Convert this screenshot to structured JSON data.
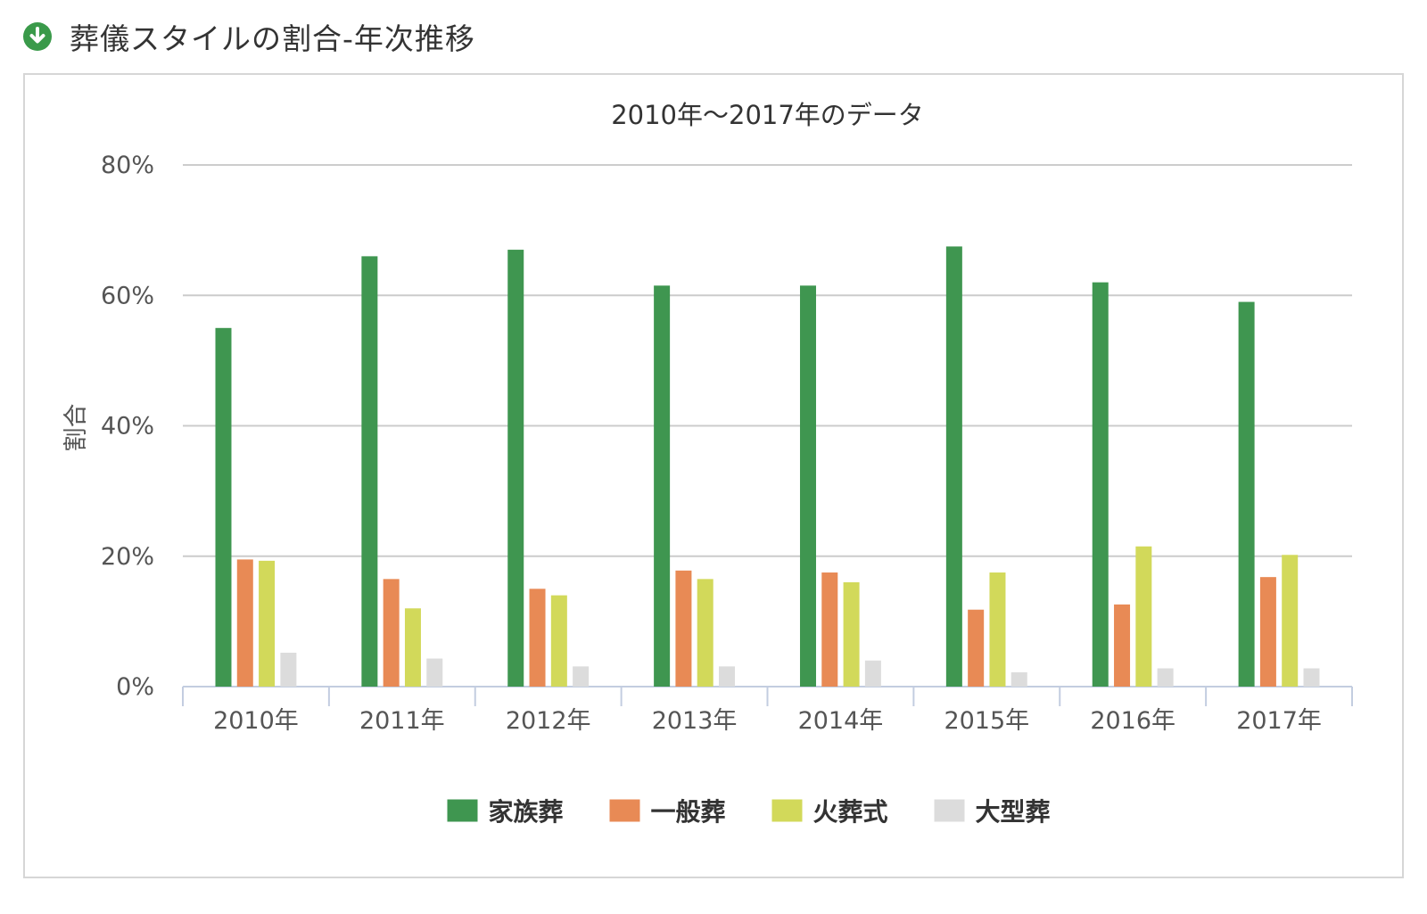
{
  "header": {
    "title": "葬儀スタイルの割合-年次推移",
    "icon": "download-arrow-icon",
    "icon_color": "#3a9a4a"
  },
  "chart_data": {
    "type": "bar",
    "title": "2010年～2017年のデータ",
    "xlabel": "",
    "ylabel": "割合",
    "ylim": [
      0,
      80
    ],
    "yticks": [
      "0%",
      "20%",
      "40%",
      "60%",
      "80%"
    ],
    "grid": true,
    "legend_position": "bottom",
    "categories": [
      "2010年",
      "2011年",
      "2012年",
      "2013年",
      "2014年",
      "2015年",
      "2016年",
      "2017年"
    ],
    "series": [
      {
        "name": "家族葬",
        "color": "#3f9650",
        "values": [
          55,
          66,
          67,
          61.5,
          61.5,
          67.5,
          62,
          59
        ]
      },
      {
        "name": "一般葬",
        "color": "#e88a55",
        "values": [
          19.5,
          16.5,
          15,
          17.8,
          17.5,
          11.8,
          12.6,
          16.8
        ]
      },
      {
        "name": "火葬式",
        "color": "#d2d95a",
        "values": [
          19.3,
          12,
          14,
          16.5,
          16,
          17.5,
          21.5,
          20.2
        ]
      },
      {
        "name": "大型葬",
        "color": "#dcdcdc",
        "values": [
          5.2,
          4.3,
          3.1,
          3.1,
          4,
          2.2,
          2.8,
          2.8
        ]
      }
    ]
  }
}
